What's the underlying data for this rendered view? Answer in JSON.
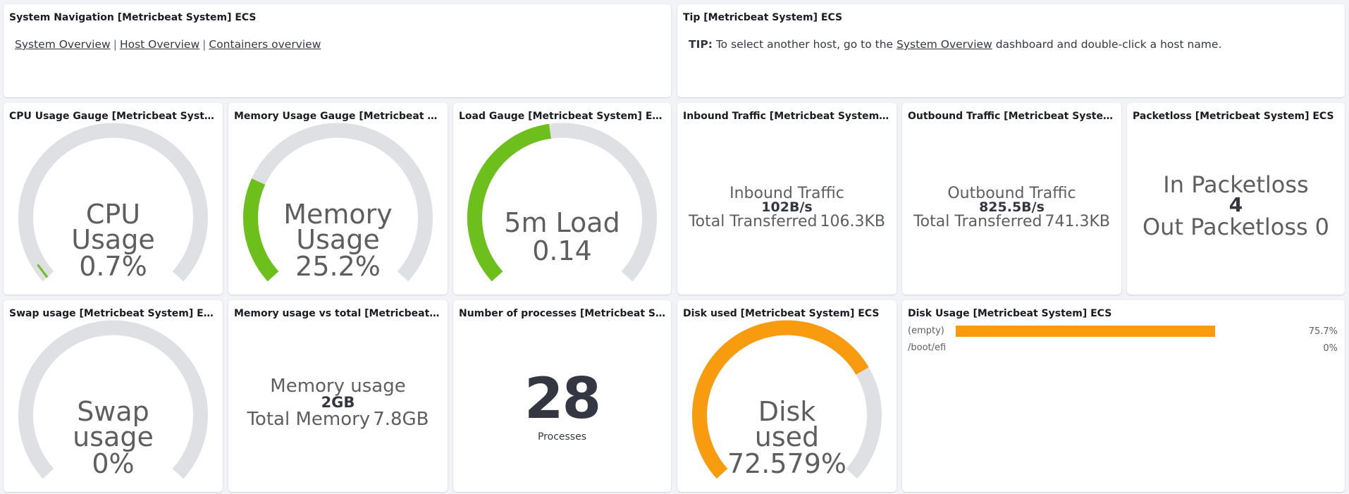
{
  "nav_panel": {
    "title": "System Navigation [Metricbeat System] ECS",
    "links": [
      "System Overview",
      "Host Overview",
      "Containers overview"
    ],
    "separator": "|"
  },
  "tip_panel": {
    "title": "Tip [Metricbeat System] ECS",
    "prefix": "TIP:",
    "text_before": "To select another host, go to the",
    "link": "System Overview",
    "text_after": "dashboard and double-click a host name."
  },
  "cpu": {
    "title": "CPU Usage Gauge [Metricbeat System] ECS",
    "label": "CPU Usage",
    "value_text": "0.7%",
    "fraction": 0.007
  },
  "memory": {
    "title": "Memory Usage Gauge [Metricbeat System] ECS",
    "label": "Memory Usage",
    "value_text": "25.2%",
    "fraction": 0.252
  },
  "load": {
    "title": "Load Gauge [Metricbeat System] ECS",
    "label": "5m Load",
    "value_text": "0.14",
    "fraction": 0.47
  },
  "inbound": {
    "title": "Inbound Traffic [Metricbeat System] ECS",
    "label": "Inbound Traffic",
    "rate": "102B/s",
    "total_label": "Total Transferred",
    "total_value": "106.3KB"
  },
  "outbound": {
    "title": "Outbound Traffic [Metricbeat System] ECS",
    "label": "Outbound Traffic",
    "rate": "825.5B/s",
    "total_label": "Total Transferred",
    "total_value": "741.3KB"
  },
  "packetloss": {
    "title": "Packetloss [Metricbeat System] ECS",
    "in_label": "In Packetloss",
    "in_value": "4",
    "out_label": "Out Packetloss",
    "out_value": "0"
  },
  "swap": {
    "title": "Swap usage [Metricbeat System] ECS",
    "label": "Swap usage",
    "value_text": "0%",
    "fraction": 0
  },
  "memory_total": {
    "title": "Memory usage vs total [Metricbeat System] ECS",
    "label": "Memory usage",
    "value": "2GB",
    "total_label": "Total Memory",
    "total_value": "7.8GB"
  },
  "processes": {
    "title": "Number of processes [Metricbeat System] ECS",
    "value": "28",
    "label": "Processes"
  },
  "disk_used": {
    "title": "Disk used [Metricbeat System] ECS",
    "label": "Disk used",
    "value_text": "72.579%",
    "fraction": 0.72579
  },
  "disk_usage": {
    "title": "Disk Usage [Metricbeat System] ECS",
    "rows": [
      {
        "label": "(empty)",
        "value_text": "75.7%",
        "fraction": 0.757
      },
      {
        "label": "/boot/efi",
        "value_text": "0%",
        "fraction": 0
      }
    ]
  },
  "colors": {
    "gauge_track": "#dfe0e3",
    "gauge_green": "#6dbf1b",
    "gauge_orange": "#f89b0f",
    "bar_orange": "#f89b0f"
  }
}
